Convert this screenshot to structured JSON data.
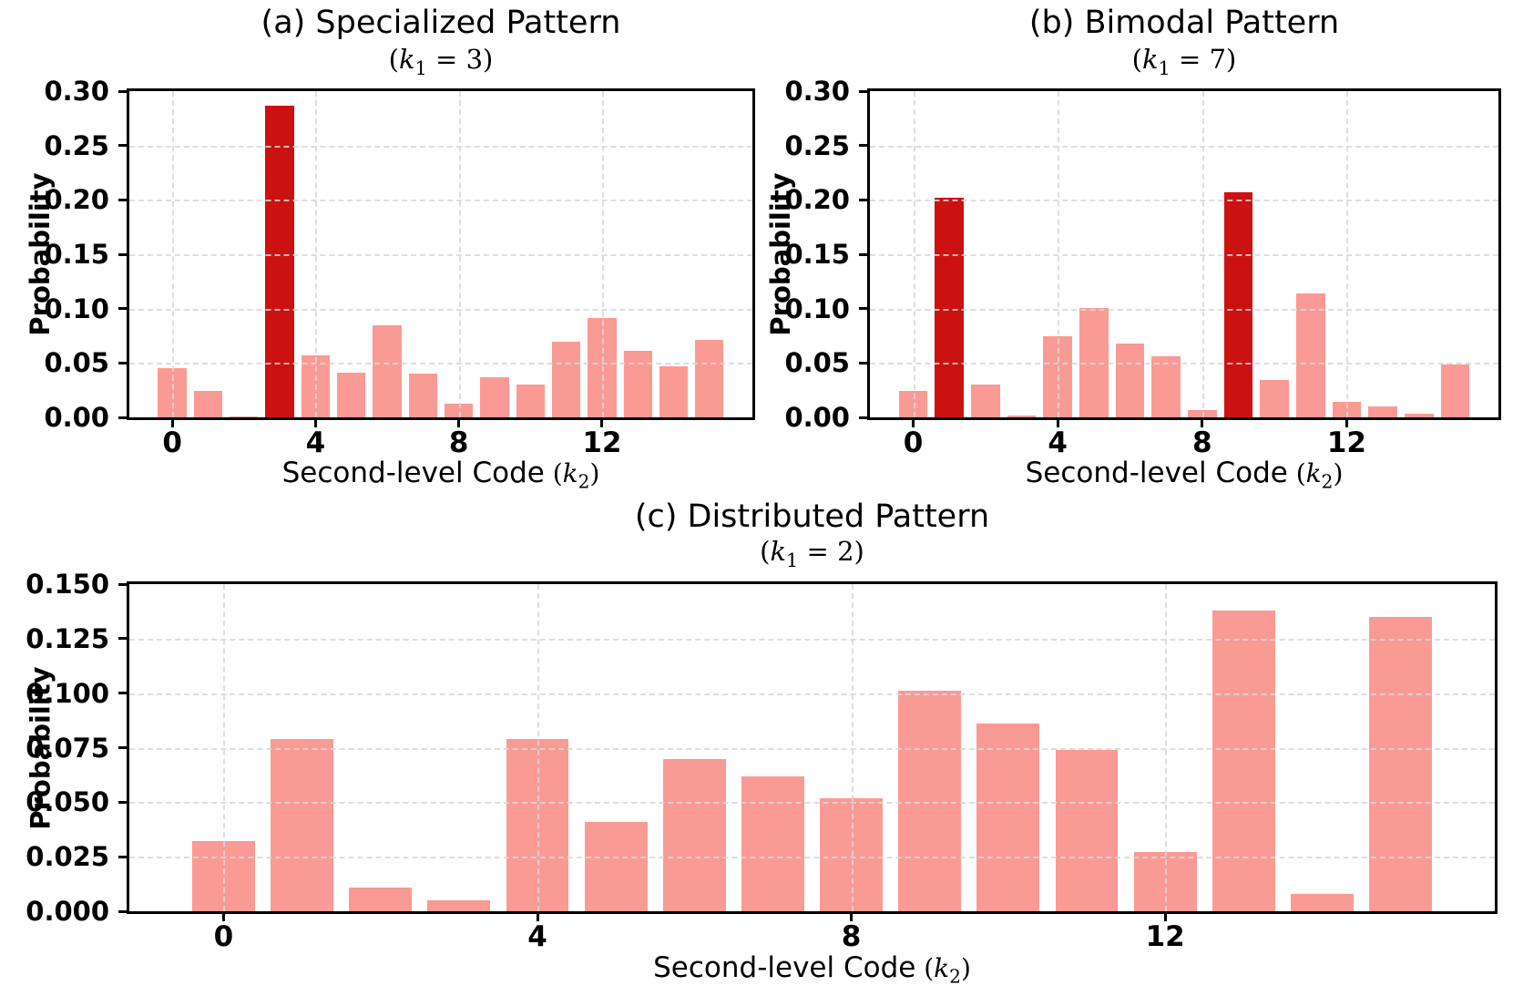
{
  "figure": {
    "background": "#ffffff",
    "colors": {
      "bar": "#FA9A95",
      "highlight": "#CC1111",
      "grid": "#D9D9D9",
      "axis": "#000000"
    },
    "ylabel": "Probability",
    "xlabel_text": "Second-level Code",
    "math": {
      "open": "(",
      "k": "k",
      "k_subscript": "1",
      "x_subscript": "2",
      "equals": "=",
      "close": ")"
    }
  },
  "chart_data": [
    {
      "id": "a",
      "type": "bar",
      "title": "(a) Specialized Pattern",
      "subtitle_k1_value": "3",
      "ylabel": "Probability",
      "xlabel": "Second-level Code (k2)",
      "categories": [
        0,
        1,
        2,
        3,
        4,
        5,
        6,
        7,
        8,
        9,
        10,
        11,
        12,
        13,
        14,
        15
      ],
      "values": [
        0.045,
        0.024,
        0.001,
        0.287,
        0.057,
        0.041,
        0.085,
        0.04,
        0.013,
        0.037,
        0.03,
        0.07,
        0.091,
        0.061,
        0.047,
        0.071
      ],
      "highlight_indices": [
        3
      ],
      "ylim": [
        0,
        0.3
      ],
      "yticks": [
        0,
        0.05,
        0.1,
        0.15,
        0.2,
        0.25,
        0.3
      ],
      "ytick_labels": [
        "0.00",
        "0.05",
        "0.10",
        "0.15",
        "0.20",
        "0.25",
        "0.30"
      ],
      "xticks": [
        0,
        4,
        8,
        12
      ],
      "xtick_labels": [
        "0",
        "4",
        "8",
        "12"
      ],
      "grid": true,
      "legend": null
    },
    {
      "id": "b",
      "type": "bar",
      "title": "(b) Bimodal Pattern",
      "subtitle_k1_value": "7",
      "ylabel": "Probability",
      "xlabel": "Second-level Code (k2)",
      "categories": [
        0,
        1,
        2,
        3,
        4,
        5,
        6,
        7,
        8,
        9,
        10,
        11,
        12,
        13,
        14,
        15
      ],
      "values": [
        0.024,
        0.202,
        0.03,
        0.002,
        0.075,
        0.101,
        0.068,
        0.056,
        0.007,
        0.207,
        0.034,
        0.114,
        0.014,
        0.01,
        0.003,
        0.049
      ],
      "highlight_indices": [
        1,
        9
      ],
      "ylim": [
        0,
        0.3
      ],
      "yticks": [
        0,
        0.05,
        0.1,
        0.15,
        0.2,
        0.25,
        0.3
      ],
      "ytick_labels": [
        "0.00",
        "0.05",
        "0.10",
        "0.15",
        "0.20",
        "0.25",
        "0.30"
      ],
      "xticks": [
        0,
        4,
        8,
        12
      ],
      "xtick_labels": [
        "0",
        "4",
        "8",
        "12"
      ],
      "grid": true,
      "legend": null
    },
    {
      "id": "c",
      "type": "bar",
      "title": "(c) Distributed Pattern",
      "subtitle_k1_value": "2",
      "ylabel": "Probability",
      "xlabel": "Second-level Code (k2)",
      "categories": [
        0,
        1,
        2,
        3,
        4,
        5,
        6,
        7,
        8,
        9,
        10,
        11,
        12,
        13,
        14,
        15
      ],
      "values": [
        0.032,
        0.079,
        0.011,
        0.005,
        0.079,
        0.041,
        0.07,
        0.062,
        0.052,
        0.101,
        0.086,
        0.074,
        0.027,
        0.138,
        0.008,
        0.135
      ],
      "highlight_indices": [],
      "ylim": [
        0,
        0.15
      ],
      "yticks": [
        0,
        0.025,
        0.05,
        0.075,
        0.1,
        0.125,
        0.15
      ],
      "ytick_labels": [
        "0.000",
        "0.025",
        "0.050",
        "0.075",
        "0.100",
        "0.125",
        "0.150"
      ],
      "xticks": [
        0,
        4,
        8,
        12
      ],
      "xtick_labels": [
        "0",
        "4",
        "8",
        "12"
      ],
      "grid": true,
      "legend": null
    }
  ]
}
